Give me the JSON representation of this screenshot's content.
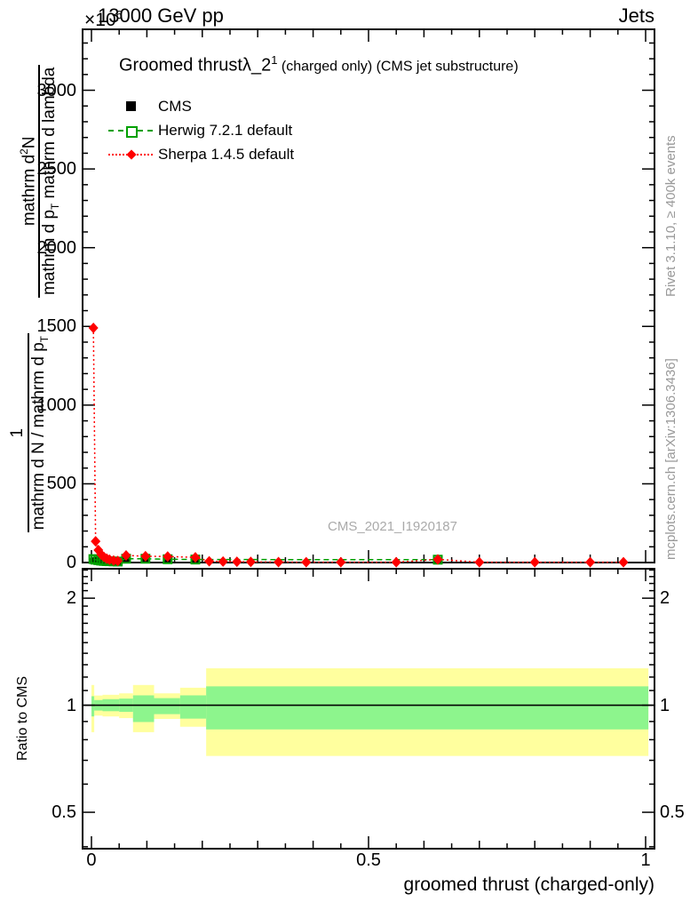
{
  "header": {
    "multiplier_base": "×10",
    "multiplier_exp": "6",
    "energy": "13000 GeV pp",
    "right": "Jets"
  },
  "title": {
    "main": "Groomed thrust",
    "lambda": "λ_2",
    "sup": "1",
    "paren": " (charged only) (CMS jet substructure)"
  },
  "legend": [
    {
      "label": "CMS",
      "marker": "filled-square",
      "color": "#000000"
    },
    {
      "label": "Herwig 7.2.1 default",
      "marker": "open-square-dashed-line",
      "color": "#00a000"
    },
    {
      "label": "Sherpa 1.4.5 default",
      "marker": "filled-diamond-dotted-line",
      "color": "#ff0000"
    }
  ],
  "ylabel": {
    "f1_num": "1",
    "f1_den_pre": "mathrm d N / mathrm d p",
    "f1_den_sub": "T",
    "f2_num_pre": "mathrm d",
    "f2_num_sup": "2",
    "f2_num_post": "N",
    "f2_den_pre": "mathrm d p",
    "f2_den_sub": "T",
    "f2_den_post": " mathrm d lambda"
  },
  "ratio_ylabel": "Ratio to CMS",
  "xlabel": "groomed thrust (charged-only)",
  "watermark": "CMS_2021_I1920187",
  "side_texts": {
    "top": "Rivet 3.1.10, ≥ 400k events",
    "bottom": "mcplots.cern.ch [arXiv:1306.3436]"
  },
  "colors": {
    "cms": "#000000",
    "herwig": "#00a000",
    "sherpa": "#ff0000",
    "band_yellow": "#ffff9e",
    "band_green": "#8df58d",
    "gray_text": "#999999"
  },
  "chart_data": {
    "type": "scatter",
    "title": "Groomed thrust λ_2^1 (charged only) (CMS jet substructure)",
    "xlabel": "groomed thrust (charged-only)",
    "ylabel": "1/(mathrm dN/mathrm dp_T) · mathrm d^2N/(mathrm dp_T mathrm d lambda)",
    "y_multiplier": "×10^6",
    "legend_position": "top-left-inside",
    "grid": false,
    "panels": {
      "main": {
        "xlim": [
          -0.016,
          1.016
        ],
        "ylim": [
          0,
          3387
        ],
        "x_ticks_major": [
          0,
          0.5,
          1
        ],
        "x_tick_medium_step": 0.1,
        "x_tick_minor_step": 0.05,
        "y_tick_major_step": 500,
        "y_tick_minor_step": 100,
        "y_tick_max": 3300,
        "series": [
          {
            "name": "CMS",
            "color": "#000000",
            "marker": "filled-square",
            "line": "none",
            "points": [
              [
                0.0035,
                10
              ],
              [
                0.0075,
                14
              ],
              [
                0.0125,
                15
              ],
              [
                0.0175,
                13
              ],
              [
                0.0225,
                11
              ],
              [
                0.0275,
                9
              ],
              [
                0.0325,
                8
              ],
              [
                0.04,
                7
              ],
              [
                0.0475,
                6
              ],
              [
                0.0625,
                20
              ],
              [
                0.0975,
                20
              ],
              [
                0.1375,
                18
              ],
              [
                0.1875,
                16
              ],
              [
                0.625,
                14
              ]
            ]
          },
          {
            "name": "Herwig 7.2.1 default",
            "color": "#00a000",
            "marker": "open-square",
            "line": "dashed",
            "points": [
              [
                0.0035,
                22
              ],
              [
                0.0075,
                18
              ],
              [
                0.0125,
                15
              ],
              [
                0.0175,
                12
              ],
              [
                0.0225,
                10
              ],
              [
                0.0275,
                9
              ],
              [
                0.0325,
                8
              ],
              [
                0.04,
                7
              ],
              [
                0.0475,
                6
              ],
              [
                0.0625,
                24
              ],
              [
                0.0975,
                24
              ],
              [
                0.1375,
                21
              ],
              [
                0.1875,
                19
              ],
              [
                0.625,
                18
              ]
            ]
          },
          {
            "name": "Sherpa 1.4.5 default",
            "color": "#ff0000",
            "marker": "filled-diamond",
            "line": "dotted",
            "points": [
              [
                0.0035,
                1490
              ],
              [
                0.0075,
                135
              ],
              [
                0.0125,
                79
              ],
              [
                0.0175,
                51
              ],
              [
                0.0225,
                35
              ],
              [
                0.0275,
                25
              ],
              [
                0.0325,
                18
              ],
              [
                0.04,
                13
              ],
              [
                0.0475,
                10
              ],
              [
                0.0625,
                45
              ],
              [
                0.0975,
                40
              ],
              [
                0.1375,
                38
              ],
              [
                0.1875,
                33
              ],
              [
                0.2125,
                8
              ],
              [
                0.2375,
                6
              ],
              [
                0.2625,
                5
              ],
              [
                0.2875,
                4
              ],
              [
                0.3375,
                3
              ],
              [
                0.3875,
                2
              ],
              [
                0.45,
                2
              ],
              [
                0.55,
                2
              ],
              [
                0.625,
                20
              ],
              [
                0.7,
                2
              ],
              [
                0.8,
                2
              ],
              [
                0.9,
                2
              ],
              [
                0.96,
                2
              ]
            ]
          }
        ]
      },
      "ratio": {
        "scale": "log",
        "ylim": [
          0.395,
          2.42
        ],
        "y_ticks_major": [
          0.5,
          1,
          2
        ],
        "y_ticks_minor": [
          0.4,
          0.6,
          0.7,
          0.8,
          0.9,
          1.1,
          1.2,
          1.3,
          1.4,
          1.5,
          1.6,
          1.7,
          1.8,
          1.9,
          2.1,
          2.2,
          2.3,
          2.4
        ],
        "reference_line": 1,
        "bands": {
          "yellow": [
            [
              0.0,
              0.005,
              0.84,
              1.14
            ],
            [
              0.005,
              0.02,
              0.935,
              1.065
            ],
            [
              0.02,
              0.05,
              0.93,
              1.07
            ],
            [
              0.05,
              0.075,
              0.92,
              1.08
            ],
            [
              0.075,
              0.113,
              0.84,
              1.14
            ],
            [
              0.113,
              0.16,
              0.915,
              1.08
            ],
            [
              0.16,
              0.207,
              0.87,
              1.12
            ],
            [
              0.207,
              1.005,
              0.72,
              1.27
            ]
          ],
          "green": [
            [
              0.0,
              0.005,
              0.93,
              1.06
            ],
            [
              0.005,
              0.02,
              0.966,
              1.034
            ],
            [
              0.02,
              0.05,
              0.962,
              1.04
            ],
            [
              0.05,
              0.075,
              0.958,
              1.044
            ],
            [
              0.075,
              0.113,
              0.897,
              1.066
            ],
            [
              0.113,
              0.16,
              0.944,
              1.047
            ],
            [
              0.16,
              0.207,
              0.917,
              1.066
            ],
            [
              0.207,
              1.005,
              0.855,
              1.13
            ]
          ]
        }
      }
    }
  }
}
